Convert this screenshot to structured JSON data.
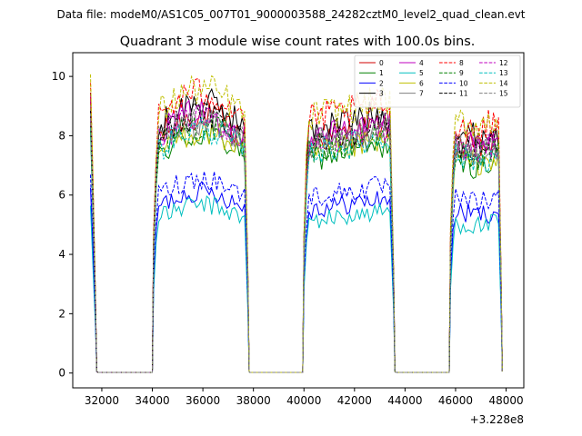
{
  "figure": {
    "suptitle": "Data file: modeM0/AS1C05_007T01_9000003588_24282cztM0_level2_quad_clean.evt",
    "offset_label": "+3.228e8"
  },
  "chart_data": {
    "type": "line",
    "title": "Quadrant 3 module wise count rates with 100.0s bins.",
    "xlabel": "",
    "ylabel": "",
    "x_offset": 322800000,
    "xlim": [
      30850,
      48700
    ],
    "ylim": [
      -0.5,
      10.8
    ],
    "xticks": [
      32000,
      34000,
      36000,
      38000,
      40000,
      42000,
      44000,
      46000,
      48000
    ],
    "xtick_labels": [
      "32000",
      "34000",
      "36000",
      "38000",
      "40000",
      "42000",
      "44000",
      "46000",
      "48000"
    ],
    "yticks": [
      0,
      2,
      4,
      6,
      8,
      10
    ],
    "ytick_labels": [
      "0",
      "2",
      "4",
      "6",
      "8",
      "10"
    ],
    "grid": false,
    "legend_position": "top-right",
    "legend_columns": 4,
    "bin_seconds": 100.0,
    "segments": [
      {
        "start": 31550,
        "end": 31800,
        "ramp": "down"
      },
      {
        "start": 34050,
        "end": 37780,
        "ramp": "up"
      },
      {
        "start": 40000,
        "end": 43550,
        "ramp": "up"
      },
      {
        "start": 45800,
        "end": 47800,
        "ramp": "up"
      }
    ],
    "gaps": [
      [
        31850,
        34000
      ],
      [
        37850,
        39950
      ],
      [
        43650,
        45750
      ]
    ],
    "series": [
      {
        "name": "0",
        "color": "#d00000",
        "dash": "solid",
        "level": 7.8
      },
      {
        "name": "1",
        "color": "#008000",
        "dash": "solid",
        "level": 7.2
      },
      {
        "name": "2",
        "color": "#0000ff",
        "dash": "solid",
        "level": 5.5
      },
      {
        "name": "3",
        "color": "#000000",
        "dash": "solid",
        "level": 8.2
      },
      {
        "name": "4",
        "color": "#bf00bf",
        "dash": "solid",
        "level": 7.9
      },
      {
        "name": "5",
        "color": "#00bfbf",
        "dash": "solid",
        "level": 5.1
      },
      {
        "name": "6",
        "color": "#bfbf00",
        "dash": "solid",
        "level": 7.3
      },
      {
        "name": "7",
        "color": "#808080",
        "dash": "solid",
        "level": 7.6
      },
      {
        "name": "8",
        "color": "#ff0000",
        "dash": "dashed",
        "level": 8.5
      },
      {
        "name": "9",
        "color": "#008000",
        "dash": "dashed",
        "level": 7.5
      },
      {
        "name": "10",
        "color": "#0000ff",
        "dash": "dashed",
        "level": 5.9
      },
      {
        "name": "11",
        "color": "#000000",
        "dash": "dashed",
        "level": 7.8
      },
      {
        "name": "12",
        "color": "#bf00bf",
        "dash": "dashed",
        "level": 7.7
      },
      {
        "name": "13",
        "color": "#00bfbf",
        "dash": "dashed",
        "level": 7.4
      },
      {
        "name": "14",
        "color": "#bfbf00",
        "dash": "dashed",
        "level": 8.6
      },
      {
        "name": "15",
        "color": "#808080",
        "dash": "dashed",
        "level": 7.7
      }
    ]
  }
}
